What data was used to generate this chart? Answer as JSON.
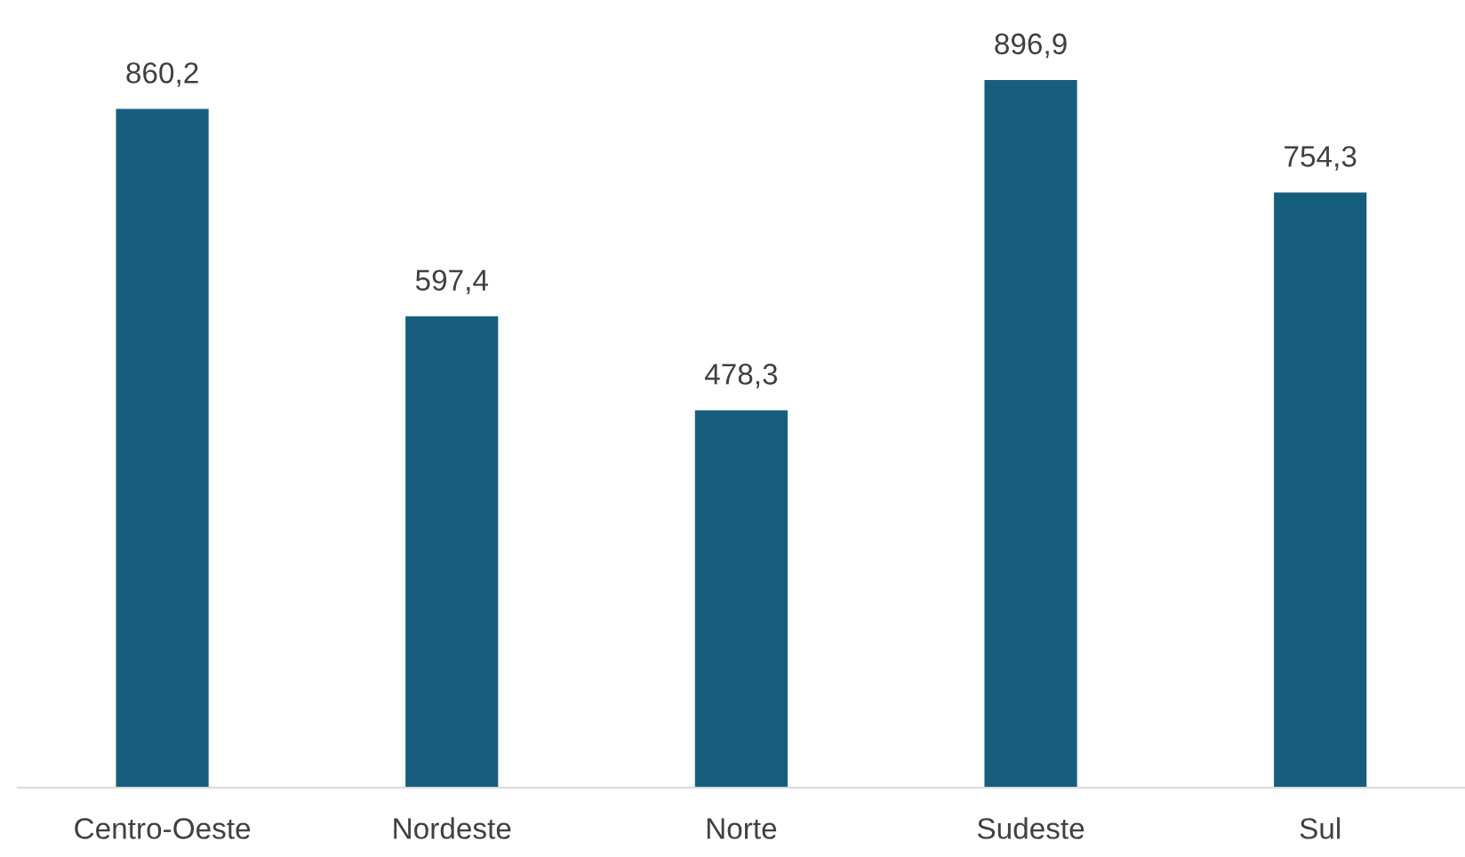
{
  "chart_data": {
    "type": "bar",
    "categories": [
      "Centro-Oeste",
      "Nordeste",
      "Norte",
      "Sudeste",
      "Sul"
    ],
    "values": [
      860.2,
      597.4,
      478.3,
      896.9,
      754.3
    ],
    "color": "#175e7e",
    "value_labels": [
      "860,2",
      "597,4",
      "478,3",
      "896,9",
      "754,3"
    ],
    "legend": false
  }
}
